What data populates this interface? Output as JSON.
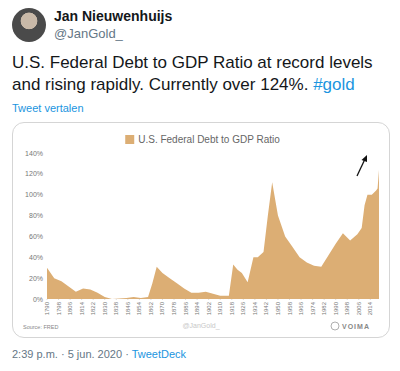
{
  "tweet": {
    "author": "Jan Nieuwenhuijs",
    "handle": "@JanGold_",
    "text": "U.S. Federal Debt to GDP Ratio at record levels and rising rapidly. Currently over 124%.",
    "hashtag": "#gold",
    "translate": "Tweet vertalen",
    "time": "2:39 p.m.",
    "separator": "·",
    "date": "5 jun. 2020",
    "client": "TweetDeck"
  },
  "chart_data": {
    "type": "area",
    "title": "U.S. Federal Debt to GDP Ratio",
    "color": "#dcae74",
    "x": [
      1790,
      1795,
      1800,
      1805,
      1810,
      1815,
      1820,
      1825,
      1830,
      1835,
      1840,
      1845,
      1850,
      1855,
      1860,
      1863,
      1866,
      1870,
      1875,
      1880,
      1885,
      1890,
      1895,
      1900,
      1905,
      1910,
      1916,
      1919,
      1922,
      1925,
      1929,
      1933,
      1936,
      1940,
      1943,
      1946,
      1950,
      1955,
      1960,
      1965,
      1970,
      1975,
      1980,
      1985,
      1990,
      1995,
      2000,
      2005,
      2008,
      2010,
      2012,
      2015,
      2018,
      2019,
      2020
    ],
    "values": [
      30,
      20,
      17,
      12,
      7,
      10,
      9,
      6,
      2,
      0,
      0.5,
      1,
      2,
      1,
      2,
      15,
      31,
      25,
      20,
      15,
      10,
      6,
      6,
      7,
      5,
      3,
      3,
      33,
      28,
      25,
      16,
      40,
      40,
      45,
      80,
      112,
      80,
      60,
      50,
      40,
      35,
      32,
      31,
      42,
      53,
      63,
      56,
      62,
      68,
      90,
      100,
      100,
      104,
      106,
      124
    ],
    "xlim": [
      1790,
      2020
    ],
    "xticks": [
      1790,
      1798,
      1806,
      1814,
      1822,
      1830,
      1838,
      1846,
      1854,
      1862,
      1870,
      1878,
      1886,
      1894,
      1902,
      1910,
      1918,
      1926,
      1934,
      1942,
      1950,
      1958,
      1966,
      1974,
      1982,
      1990,
      1998,
      2006,
      2014
    ],
    "ylim": [
      0,
      140
    ],
    "yticks": [
      {
        "value": 0,
        "label": "0%"
      },
      {
        "value": 20,
        "label": "20%"
      },
      {
        "value": 40,
        "label": "40%"
      },
      {
        "value": 60,
        "label": "60%"
      },
      {
        "value": 80,
        "label": "80%"
      },
      {
        "value": 100,
        "label": "100%"
      },
      {
        "value": 120,
        "label": "120%"
      },
      {
        "value": 140,
        "label": "140%"
      }
    ],
    "grid": false,
    "annotations": [
      "Source: FRED",
      "@JanGold_",
      "VOIMA"
    ]
  }
}
